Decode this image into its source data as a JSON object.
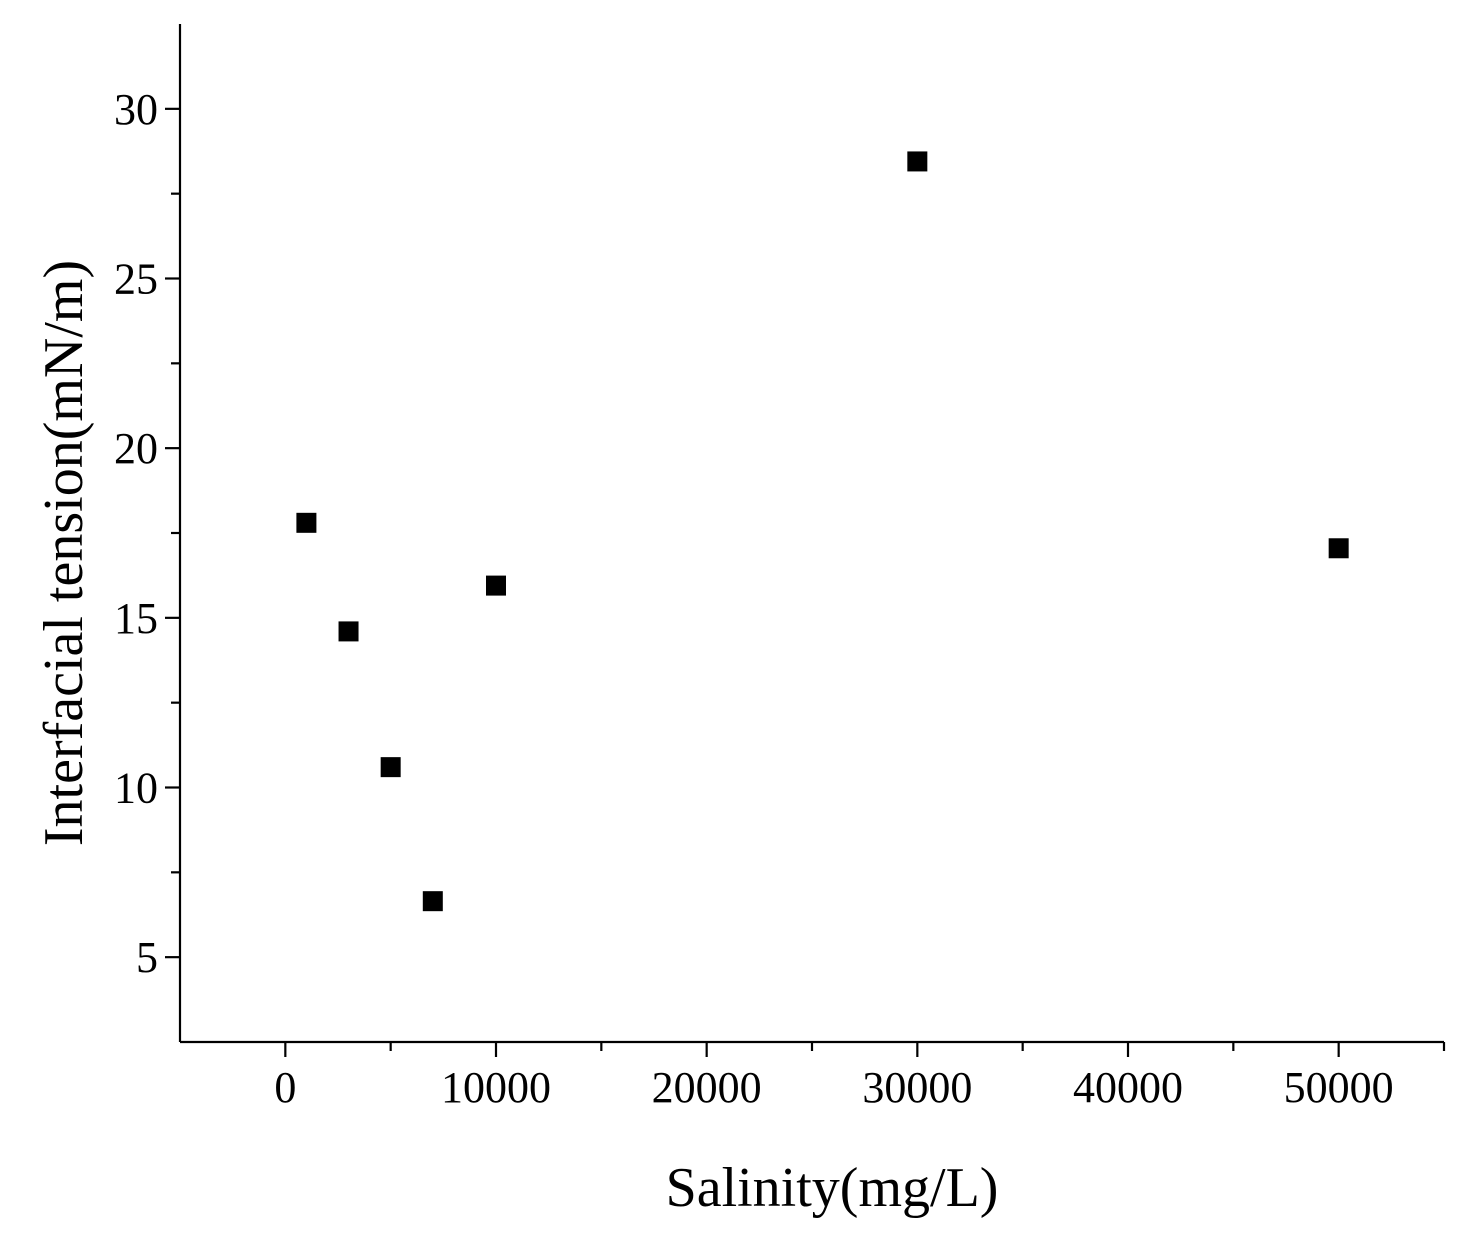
{
  "chart_data": {
    "type": "scatter",
    "title": "",
    "xlabel": "Salinity(mg/L)",
    "ylabel": "Interfacial tension(mN/m)",
    "xlim": [
      -5000,
      55000
    ],
    "ylim": [
      2.5,
      32.5
    ],
    "x_ticks": [
      0,
      10000,
      20000,
      30000,
      40000,
      50000
    ],
    "x_minor_ticks": [
      5000,
      15000,
      25000,
      35000,
      45000,
      55000
    ],
    "y_ticks": [
      5,
      10,
      15,
      20,
      25,
      30
    ],
    "y_minor_ticks": [
      7.5,
      12.5,
      17.5,
      22.5,
      27.5
    ],
    "grid": false,
    "legend": "none",
    "marker": "square",
    "marker_color": "#000000",
    "series": [
      {
        "x": [
          1000,
          3000,
          5000,
          7000,
          10000,
          30000,
          50000
        ],
        "y": [
          17.8,
          14.6,
          10.6,
          6.65,
          15.95,
          28.45,
          17.05
        ]
      }
    ]
  }
}
